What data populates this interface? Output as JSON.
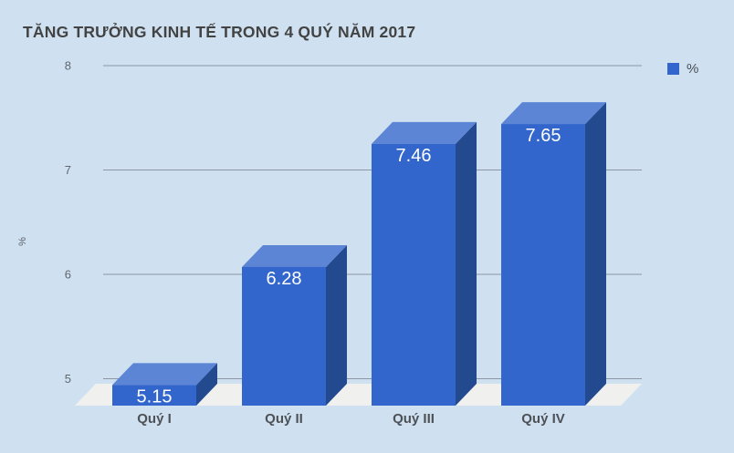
{
  "title": "TĂNG TRƯỞNG KINH TẾ TRONG 4 QUÝ NĂM 2017",
  "legend": {
    "label": "%",
    "color": "#3366cc"
  },
  "y_axis": {
    "label": "%",
    "ticks": [
      "5",
      "6",
      "7",
      "8"
    ]
  },
  "chart_data": {
    "type": "bar",
    "style": "3d-column",
    "title": "TĂNG TRƯỞNG KINH TẾ TRONG 4 QUÝ NĂM 2017",
    "categories": [
      "Quý I",
      "Quý II",
      "Quý III",
      "Quý IV"
    ],
    "values": [
      5.15,
      6.28,
      7.46,
      7.65
    ],
    "value_labels": [
      "5.15",
      "6.28",
      "7.46",
      "7.65"
    ],
    "series_name": "%",
    "xlabel": "",
    "ylabel": "%",
    "ylim": [
      5,
      8
    ],
    "yticks": [
      5,
      6,
      7,
      8
    ],
    "grid": true,
    "legend_position": "top-right",
    "colors": {
      "bar_front": "#3366cc",
      "bar_top": "#5c85d6",
      "bar_side": "#234a8f",
      "floor": "#f0f0ee",
      "background": "#cfe1f1",
      "gridline": "#8d97a3",
      "tick_text": "#61666d",
      "category_text": "#4d5156",
      "value_text": "#ffffff",
      "title_text": "#434343"
    }
  }
}
